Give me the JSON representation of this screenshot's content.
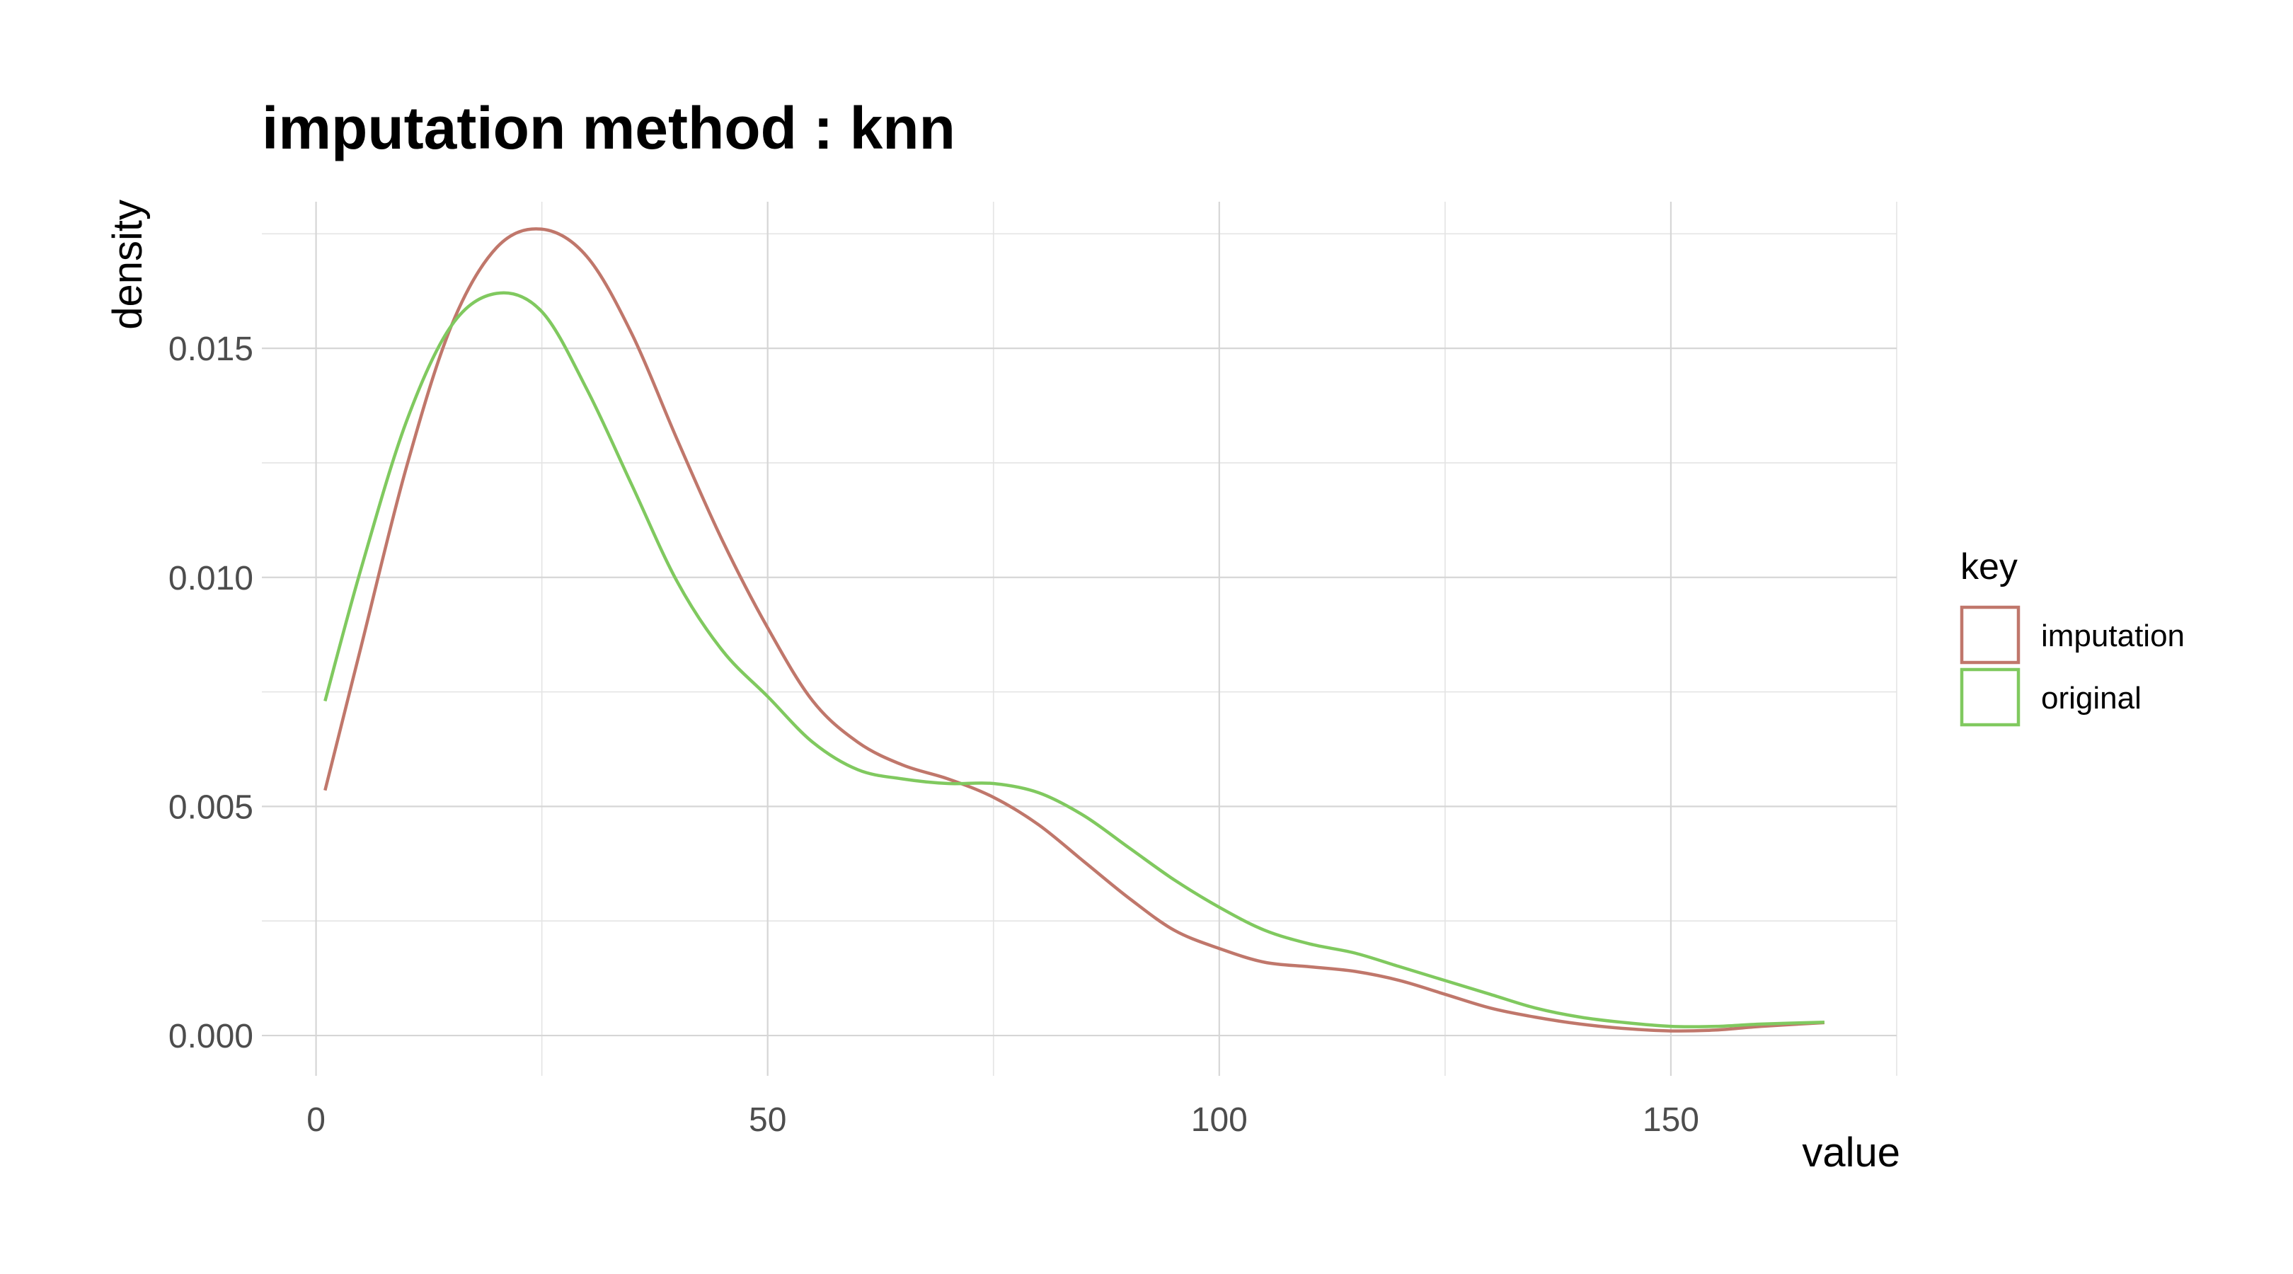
{
  "chart_data": {
    "type": "line",
    "title": "imputation method : knn",
    "xlabel": "value",
    "ylabel": "density",
    "xlim": [
      -6,
      175
    ],
    "ylim": [
      -0.00088,
      0.0182
    ],
    "x_ticks": [
      0,
      50,
      100,
      150
    ],
    "x_tick_labels": [
      "0",
      "50",
      "100",
      "150"
    ],
    "y_ticks": [
      0,
      0.005,
      0.01,
      0.015
    ],
    "y_tick_labels": [
      "0.000",
      "0.005",
      "0.010",
      "0.015"
    ],
    "x_minor_ticks": [
      25,
      75,
      125,
      175
    ],
    "y_minor_ticks": [
      0.0025,
      0.0075,
      0.0125,
      0.0175
    ],
    "grid": true,
    "legend": {
      "title": "key",
      "placement": "right"
    },
    "series": [
      {
        "name": "imputation",
        "color": "#c0776b",
        "x": [
          1,
          5,
          10,
          15,
          20,
          25,
          30,
          35,
          40,
          45,
          50,
          55,
          60,
          65,
          70,
          75,
          80,
          85,
          90,
          95,
          100,
          105,
          110,
          115,
          120,
          125,
          130,
          135,
          140,
          145,
          150,
          155,
          160,
          167
        ],
        "y": [
          0.00535,
          0.0085,
          0.0124,
          0.0155,
          0.0172,
          0.0176,
          0.017,
          0.0153,
          0.013,
          0.0108,
          0.0089,
          0.0073,
          0.0064,
          0.0059,
          0.0056,
          0.0052,
          0.0046,
          0.0038,
          0.003,
          0.0023,
          0.0019,
          0.0016,
          0.0015,
          0.0014,
          0.0012,
          0.0009,
          0.0006,
          0.0004,
          0.00025,
          0.00015,
          0.0001,
          0.00012,
          0.0002,
          0.00028
        ]
      },
      {
        "name": "original",
        "color": "#80c95f",
        "x": [
          1,
          5,
          10,
          15,
          20,
          25,
          30,
          35,
          40,
          45,
          50,
          55,
          60,
          65,
          70,
          75,
          80,
          85,
          90,
          95,
          100,
          105,
          110,
          115,
          120,
          125,
          130,
          135,
          140,
          145,
          150,
          155,
          160,
          167
        ],
        "y": [
          0.0073,
          0.0102,
          0.0134,
          0.0155,
          0.0162,
          0.0158,
          0.0141,
          0.012,
          0.0099,
          0.0084,
          0.0074,
          0.0064,
          0.0058,
          0.0056,
          0.0055,
          0.0055,
          0.0053,
          0.0048,
          0.0041,
          0.0034,
          0.0028,
          0.0023,
          0.002,
          0.0018,
          0.0015,
          0.0012,
          0.0009,
          0.0006,
          0.0004,
          0.00028,
          0.0002,
          0.0002,
          0.00025,
          0.00029
        ]
      }
    ]
  }
}
